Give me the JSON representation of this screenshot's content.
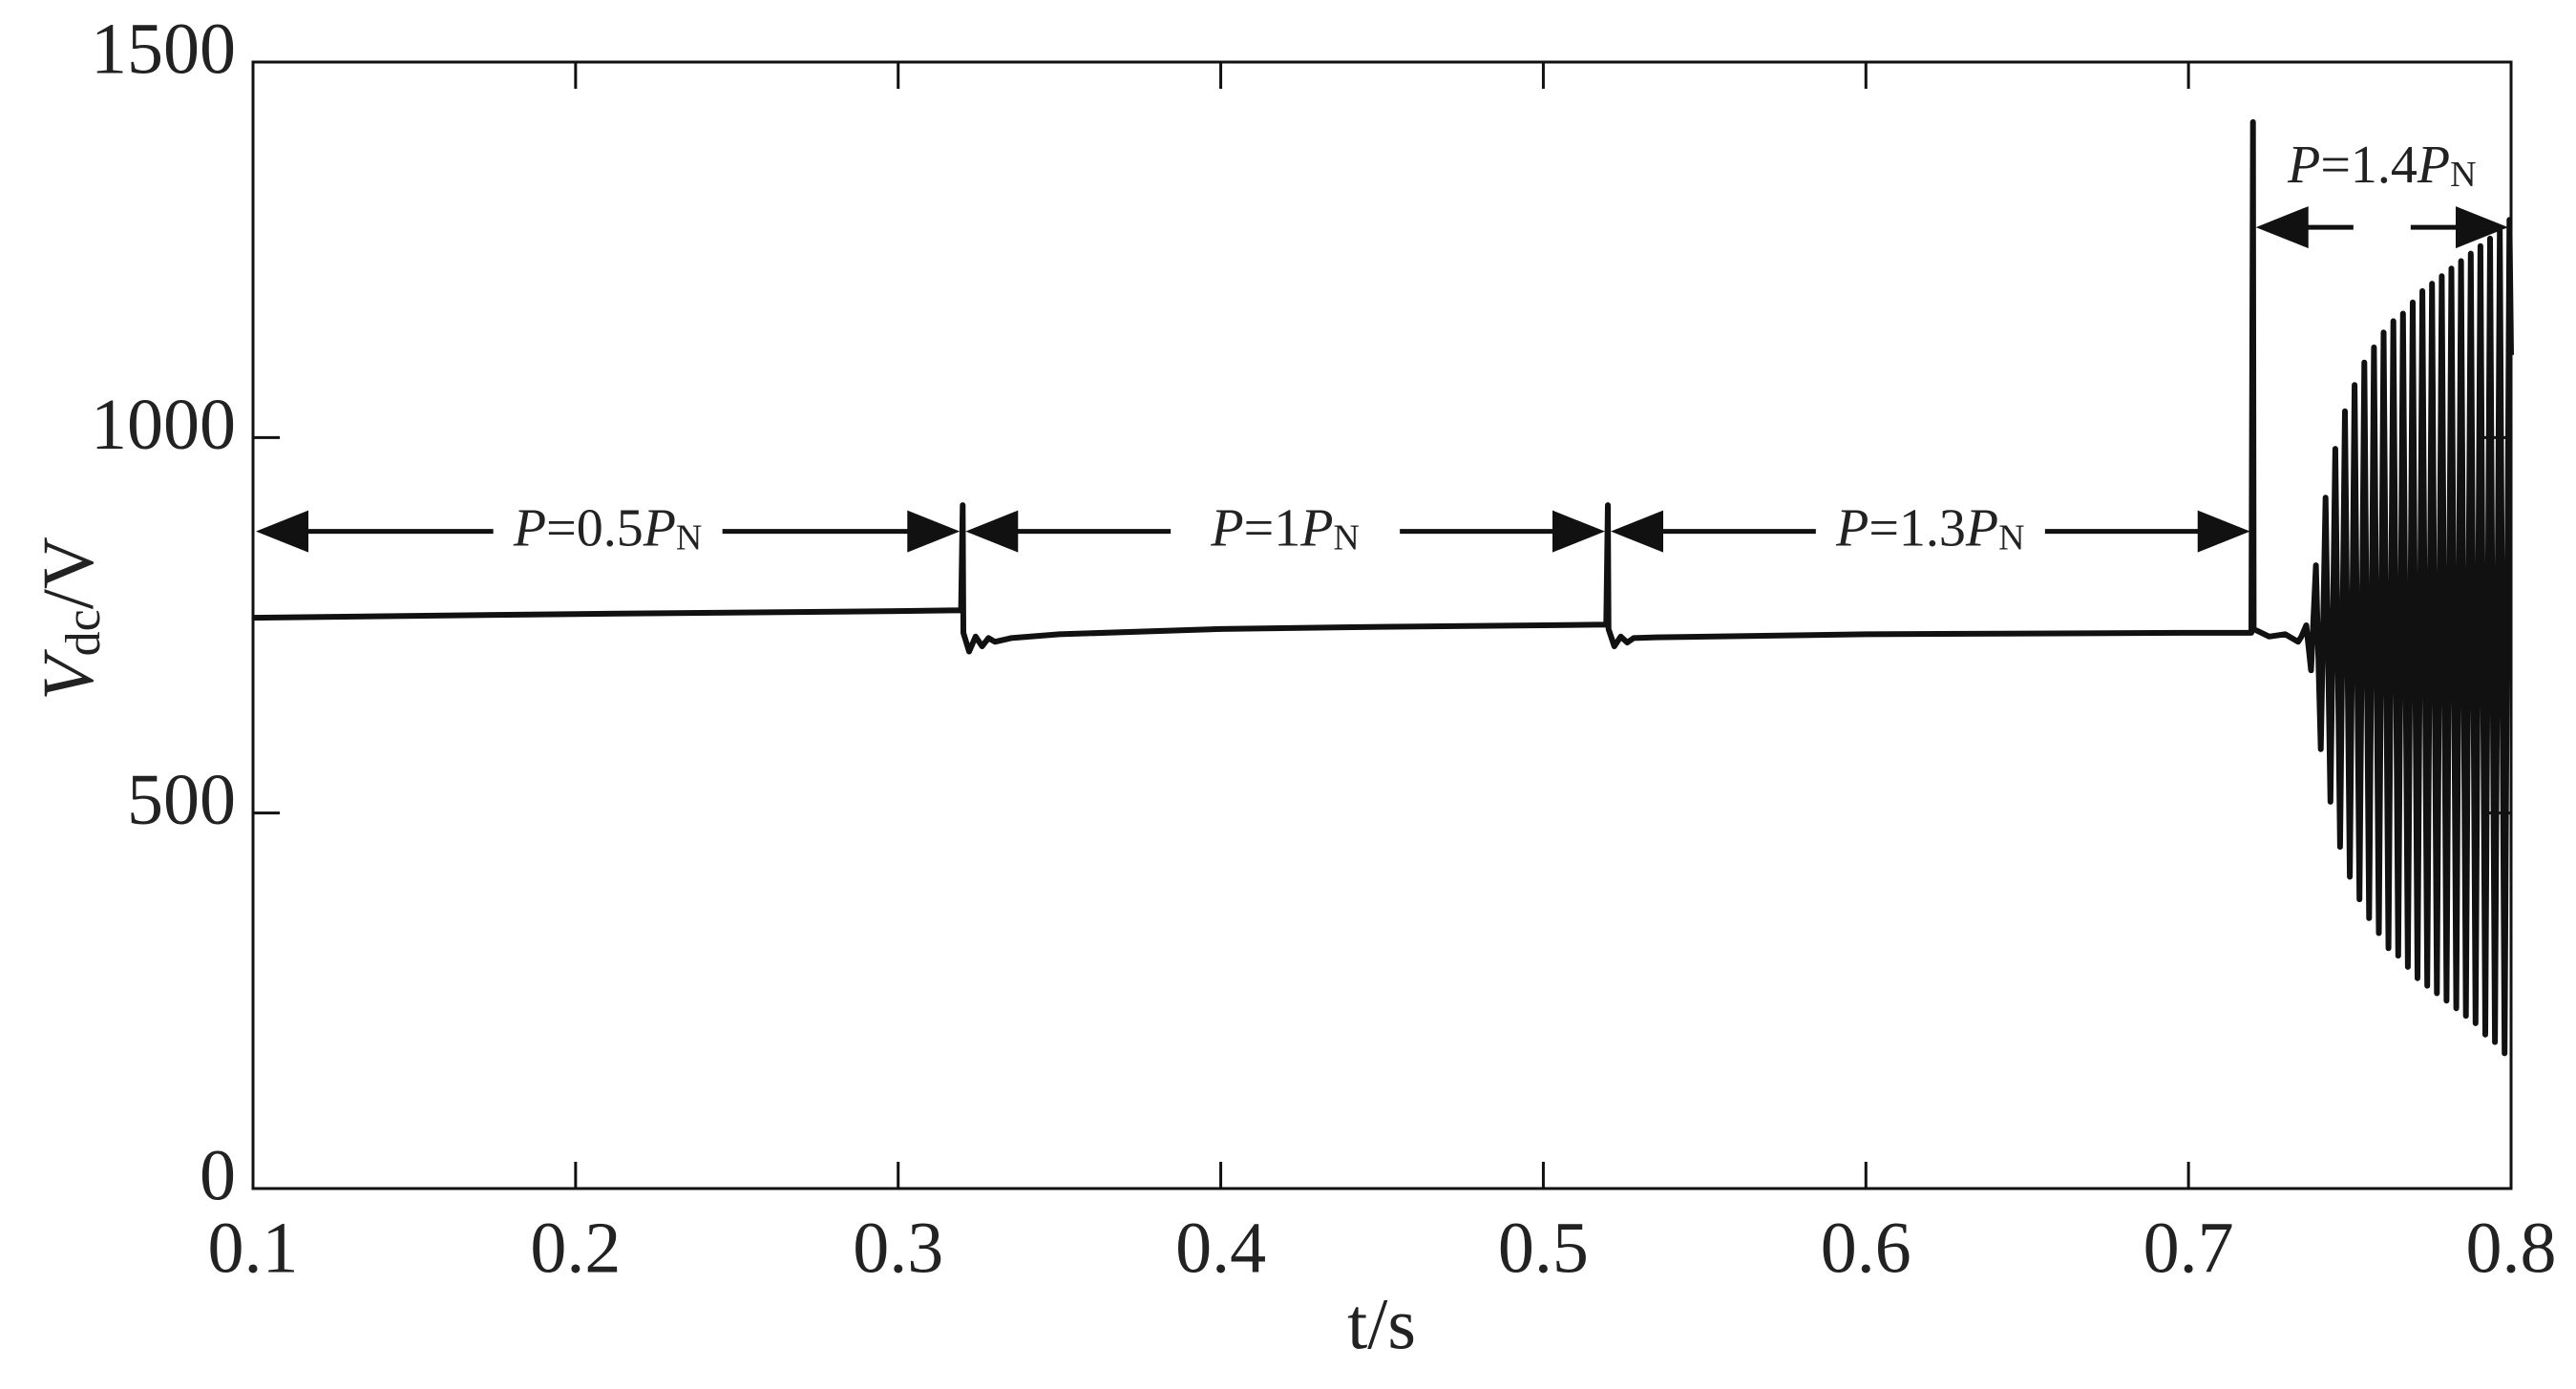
{
  "chart_data": {
    "type": "line",
    "xlabel": "t/s",
    "ylabel": [
      "V",
      "dc",
      "/V"
    ],
    "xlim": [
      0.1,
      0.8
    ],
    "ylim": [
      0,
      1500
    ],
    "xticks": [
      0.1,
      0.2,
      0.3,
      0.4,
      0.5,
      0.6,
      0.7,
      0.8
    ],
    "yticks": [
      0,
      500,
      1000,
      1500
    ],
    "color": "#111111",
    "x": [
      0.1,
      0.2,
      0.3,
      0.3195,
      0.32,
      0.3202,
      0.322,
      0.324,
      0.326,
      0.328,
      0.33,
      0.335,
      0.35,
      0.4,
      0.45,
      0.5,
      0.5195,
      0.52,
      0.5202,
      0.522,
      0.524,
      0.526,
      0.528,
      0.535,
      0.6,
      0.7,
      0.7195,
      0.72,
      0.7202,
      0.725,
      0.73,
      0.734,
      0.735,
      0.7365,
      0.738,
      0.7395,
      0.741,
      0.7425,
      0.744,
      0.7455,
      0.747,
      0.7485,
      0.75,
      0.7515,
      0.753,
      0.7545,
      0.756,
      0.7575,
      0.759,
      0.7605,
      0.762,
      0.7635,
      0.765,
      0.7665,
      0.768,
      0.7695,
      0.771,
      0.7725,
      0.774,
      0.7755,
      0.777,
      0.7785,
      0.78,
      0.7815,
      0.783,
      0.7845,
      0.786,
      0.7875,
      0.789,
      0.7905,
      0.792,
      0.7935,
      0.795,
      0.7965,
      0.798,
      0.7995,
      0.8
    ],
    "values": [
      760,
      765,
      769,
      770,
      910,
      740,
      715,
      735,
      722,
      733,
      728,
      733,
      738,
      745,
      748,
      750,
      751,
      910,
      745,
      722,
      735,
      727,
      733,
      734,
      738,
      740,
      740,
      1420,
      745,
      735,
      738,
      728,
      735,
      750,
      690,
      830,
      585,
      920,
      515,
      985,
      455,
      1035,
      415,
      1070,
      385,
      1100,
      360,
      1120,
      340,
      1140,
      320,
      1155,
      310,
      1165,
      295,
      1180,
      280,
      1195,
      270,
      1205,
      260,
      1215,
      250,
      1225,
      240,
      1235,
      230,
      1245,
      220,
      1255,
      205,
      1265,
      195,
      1275,
      180,
      1290,
      1110
    ],
    "annotations": [
      {
        "text": [
          "P",
          "=0.5",
          "P",
          "N"
        ],
        "span": [
          0.1,
          0.32
        ],
        "y": 875
      },
      {
        "text": [
          "P",
          "=1",
          "P",
          "N"
        ],
        "span": [
          0.32,
          0.52
        ],
        "y": 875
      },
      {
        "text": [
          "P",
          "=1.3",
          "P",
          "N"
        ],
        "span": [
          0.52,
          0.72
        ],
        "y": 875
      },
      {
        "text": [
          "P",
          "=1.4",
          "P",
          "N"
        ],
        "span": [
          0.72,
          0.8
        ],
        "y": 1280
      }
    ]
  }
}
